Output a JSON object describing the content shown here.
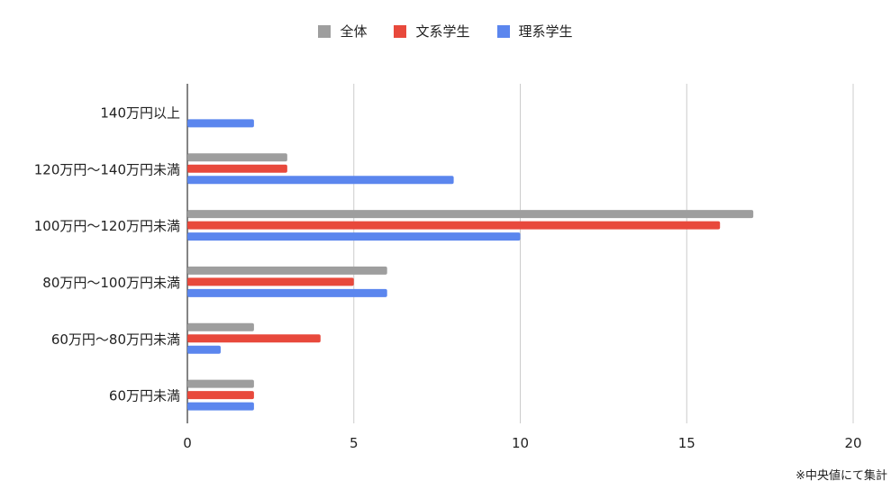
{
  "chart_data": {
    "type": "bar",
    "orientation": "horizontal",
    "categories": [
      "140万円以上",
      "120万円〜140万円未満",
      "100万円〜120万円未満",
      "80万円〜100万円未満",
      "60万円〜80万円未満",
      "60万円未満"
    ],
    "series": [
      {
        "name": "全体",
        "color": "#9e9e9e",
        "values": [
          0,
          3,
          17,
          6,
          2,
          2
        ]
      },
      {
        "name": "文系学生",
        "color": "#e8493c",
        "values": [
          0,
          3,
          16,
          5,
          4,
          2
        ]
      },
      {
        "name": "理系学生",
        "color": "#5b86ee",
        "values": [
          2,
          8,
          10,
          6,
          1,
          2
        ]
      }
    ],
    "xlim": [
      0,
      20
    ],
    "xticks": [
      "0",
      "5",
      "10",
      "15",
      "20"
    ],
    "grid": true,
    "legend_position": "top-center"
  },
  "footnote": "※中央値にて集計"
}
